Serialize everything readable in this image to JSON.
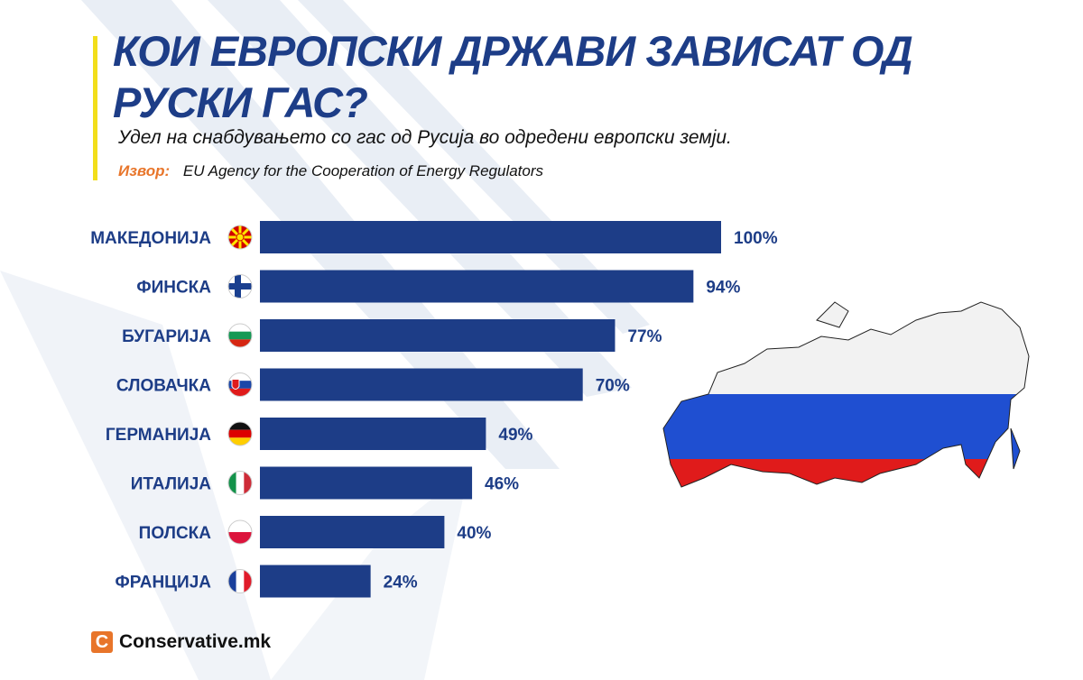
{
  "header": {
    "title": "КОИ ЕВРОПСКИ ДРЖАВИ ЗАВИСАТ ОД РУСКИ ГАС?",
    "subtitle": "Удел на снабдувањето со гас од Русија во одредени европски земји.",
    "source_label": "Извор:",
    "source_text": "EU Agency for the Cooperation of Energy Regulators"
  },
  "brand": {
    "logo_letter": "C",
    "name": "Conservative.mk"
  },
  "colors": {
    "bar": "#1d3d87",
    "title": "#1d3d87",
    "accent": "#f2de1a",
    "source_label": "#e8752a"
  },
  "chart_data": {
    "type": "bar",
    "orientation": "horizontal",
    "categories": [
      "МАКЕДОНИЈА",
      "ФИНСКА",
      "БУГАРИЈА",
      "СЛОВАЧКА",
      "ГЕРМАНИЈА",
      "ИТАЛИЈА",
      "ПОЛСКА",
      "ФРАНЦИЈА"
    ],
    "values": [
      100,
      94,
      77,
      70,
      49,
      46,
      40,
      24
    ],
    "value_labels": [
      "100%",
      "94%",
      "77%",
      "70%",
      "49%",
      "46%",
      "40%",
      "24%"
    ],
    "flags": [
      "north-macedonia-flag-icon",
      "finland-flag-icon",
      "bulgaria-flag-icon",
      "slovakia-flag-icon",
      "germany-flag-icon",
      "italy-flag-icon",
      "poland-flag-icon",
      "france-flag-icon"
    ],
    "xlim": [
      0,
      100
    ],
    "grid": false,
    "title": "КОИ ЕВРОПСКИ ДРЖАВИ ЗАВИСАТ ОД РУСКИ ГАС?",
    "xlabel": "",
    "ylabel": ""
  },
  "decorations": {
    "map": "russia-map-flag-colored"
  }
}
